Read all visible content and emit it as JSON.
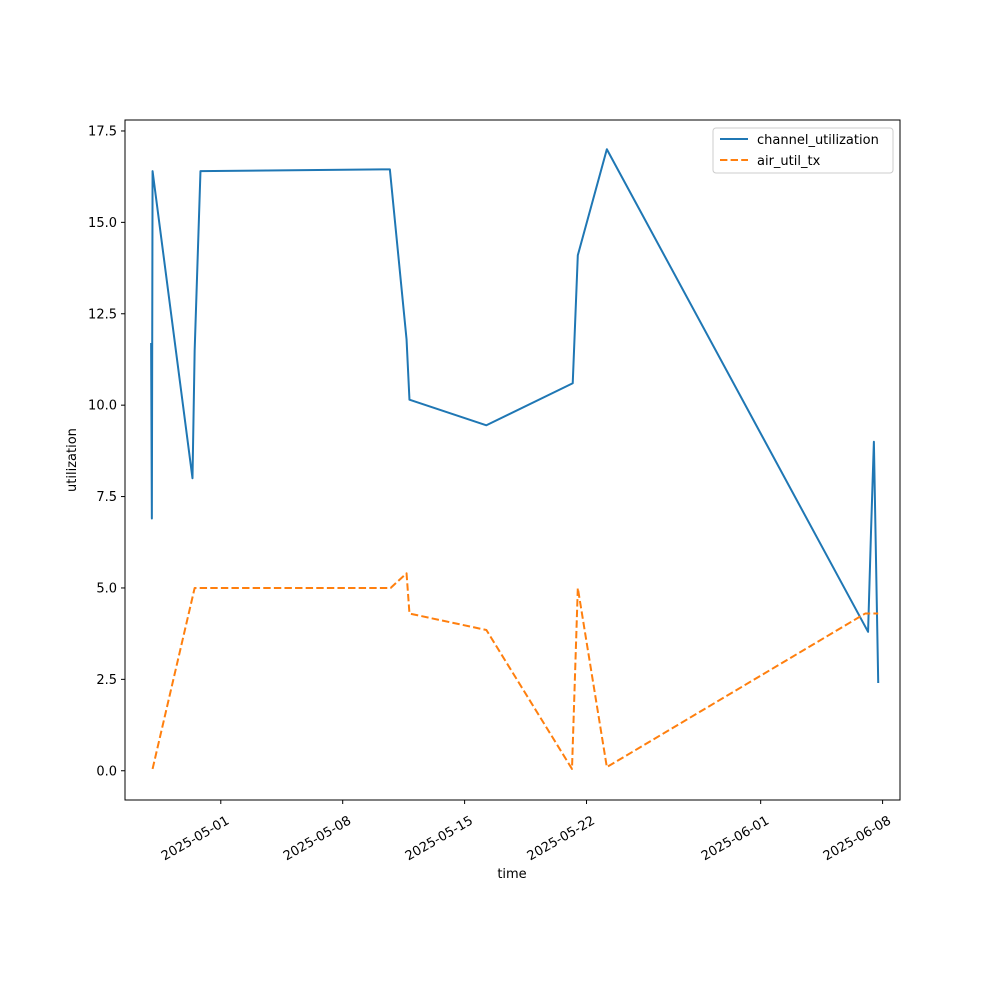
{
  "chart_data": {
    "type": "line",
    "title": "",
    "xlabel": "time",
    "ylabel": "utilization",
    "xlim": [
      "2025-04-25T12:00",
      "2025-06-09T00:00"
    ],
    "ylim": [
      -0.8,
      17.8
    ],
    "grid": false,
    "legend_position": "top-right",
    "x_ticks": [
      "2025-05-01",
      "2025-05-08",
      "2025-05-15",
      "2025-05-22",
      "2025-06-01",
      "2025-06-08"
    ],
    "y_ticks": [
      0.0,
      2.5,
      5.0,
      7.5,
      10.0,
      12.5,
      15.0,
      17.5
    ],
    "y_tick_labels": [
      "0.0",
      "2.5",
      "5.0",
      "7.5",
      "10.0",
      "12.5",
      "15.0",
      "17.5"
    ],
    "series": [
      {
        "name": "channel_utilization",
        "color": "#1f77b4",
        "dash": "solid",
        "points": [
          [
            "2025-04-27T00:00",
            11.7
          ],
          [
            "2025-04-27T01:00",
            6.9
          ],
          [
            "2025-04-27T02:00",
            16.4
          ],
          [
            "2025-04-29T09:00",
            8.0
          ],
          [
            "2025-04-29T12:00",
            11.5
          ],
          [
            "2025-04-29T20:00",
            16.4
          ],
          [
            "2025-05-10T17:00",
            16.45
          ],
          [
            "2025-05-11T16:00",
            11.8
          ],
          [
            "2025-05-11T20:00",
            10.15
          ],
          [
            "2025-05-16T06:00",
            9.45
          ],
          [
            "2025-05-21T05:00",
            10.6
          ],
          [
            "2025-05-21T12:00",
            14.1
          ],
          [
            "2025-05-23T04:00",
            17.0
          ],
          [
            "2025-06-07T04:00",
            3.8
          ],
          [
            "2025-06-07T08:00",
            6.5
          ],
          [
            "2025-06-07T12:00",
            9.0
          ],
          [
            "2025-06-07T18:00",
            2.4
          ]
        ]
      },
      {
        "name": "air_util_tx",
        "color": "#ff7f0e",
        "dash": "dashed",
        "points": [
          [
            "2025-04-27T02:00",
            0.05
          ],
          [
            "2025-04-29T12:00",
            5.0
          ],
          [
            "2025-05-10T18:00",
            5.0
          ],
          [
            "2025-05-11T16:00",
            5.4
          ],
          [
            "2025-05-11T20:00",
            4.3
          ],
          [
            "2025-05-16T06:00",
            3.85
          ],
          [
            "2025-05-21T04:00",
            0.05
          ],
          [
            "2025-05-21T12:00",
            5.0
          ],
          [
            "2025-05-23T04:00",
            0.1
          ],
          [
            "2025-06-07T00:00",
            4.3
          ],
          [
            "2025-06-07T18:00",
            4.3
          ]
        ]
      }
    ]
  }
}
